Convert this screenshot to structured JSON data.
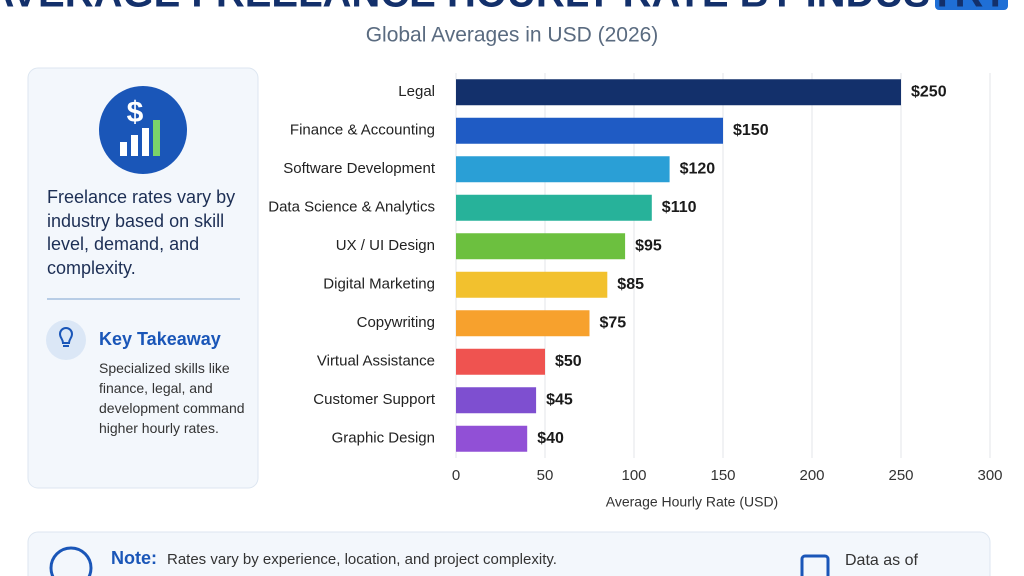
{
  "title": "AVERAGE FREELANCE HOURLY RATE BY INDUSTRY",
  "chart_data": {
    "type": "bar",
    "orientation": "horizontal",
    "subtitle": "Global Averages in USD (2026)",
    "categories": [
      "Legal",
      "Finance & Accounting",
      "Software Development",
      "Data Science & Analytics",
      "UX / UI Design",
      "Digital Marketing",
      "Copywriting",
      "Virtual Assistance",
      "Customer Support",
      "Graphic Design"
    ],
    "values": [
      250,
      150,
      120,
      110,
      95,
      85,
      75,
      50,
      45,
      40
    ],
    "value_labels": [
      "$250",
      "$150",
      "$120",
      "$110",
      "$95",
      "$85",
      "$75",
      "$50",
      "$45",
      "$40"
    ],
    "colors": [
      "#13306b",
      "#1f5bc4",
      "#2a9fd6",
      "#27b29a",
      "#6cc03f",
      "#f2c12e",
      "#f7a12d",
      "#ef5350",
      "#7e4fd0",
      "#9150d6"
    ],
    "xlim": [
      0,
      300
    ],
    "xticks": [
      0,
      50,
      100,
      150,
      200,
      250,
      300
    ],
    "xlabel": "Average Hourly Rate (USD)",
    "grid": true
  },
  "sidebar": {
    "summary": "Freelance rates vary by industry based on skill level, demand, and complexity.",
    "takeaway_title": "Key Takeaway",
    "takeaway_text": "Specialized skills like finance, legal, and development command higher hourly rates."
  },
  "note": {
    "label": "Note:",
    "text": "Rates vary by experience, location, and project complexity.",
    "data_as_of": "Data as of"
  }
}
